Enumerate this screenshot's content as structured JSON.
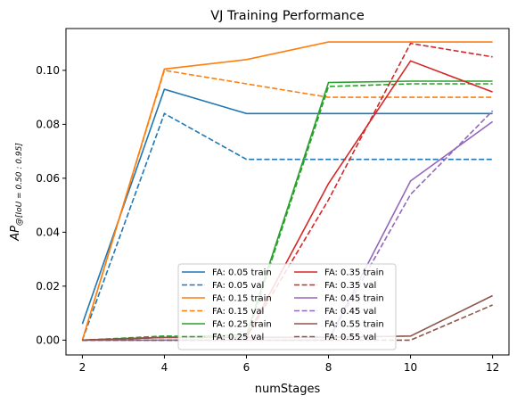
{
  "chart_data": {
    "type": "line",
    "title": "VJ Training Performance",
    "xlabel": "numStages",
    "ylabel": "AP@[IoU = 0.50 : 0.95]",
    "ylabel_parts": {
      "main": "AP",
      "sub": "@[IoU = 0.50 : 0.95]"
    },
    "x": [
      2,
      4,
      6,
      8,
      10,
      12
    ],
    "xlim": [
      1.6,
      12.4
    ],
    "ylim": [
      -0.0055,
      0.1155
    ],
    "xticks": [
      2,
      4,
      6,
      8,
      10,
      12
    ],
    "yticks": [
      0.0,
      0.02,
      0.04,
      0.06,
      0.08,
      0.1
    ],
    "ytick_labels": [
      "0.00",
      "0.02",
      "0.04",
      "0.06",
      "0.08",
      "0.10"
    ],
    "grid": false,
    "legend_position": "lower-center",
    "legend_columns": 2,
    "series": [
      {
        "name": "FA: 0.05 train",
        "color": "#1f77b4",
        "style": "solid",
        "values": [
          0.006,
          0.093,
          0.084,
          0.084,
          0.084,
          0.084
        ]
      },
      {
        "name": "FA: 0.05 val",
        "color": "#1f77b4",
        "style": "dashed",
        "values": [
          0.0,
          0.084,
          0.067,
          0.067,
          0.067,
          0.067
        ]
      },
      {
        "name": "FA: 0.15 train",
        "color": "#ff7f0e",
        "style": "solid",
        "values": [
          0.0,
          0.1005,
          0.104,
          0.1105,
          0.1105,
          0.1105
        ]
      },
      {
        "name": "FA: 0.15 val",
        "color": "#ff7f0e",
        "style": "dashed",
        "values": [
          0.0,
          0.1,
          0.095,
          0.09,
          0.09,
          0.09
        ]
      },
      {
        "name": "FA: 0.25 train",
        "color": "#2ca02c",
        "style": "solid",
        "values": [
          0.0,
          0.001,
          0.002,
          0.0955,
          0.096,
          0.096
        ]
      },
      {
        "name": "FA: 0.25 val",
        "color": "#2ca02c",
        "style": "dashed",
        "values": [
          0.0,
          0.0015,
          0.001,
          0.094,
          0.095,
          0.095
        ]
      },
      {
        "name": "FA: 0.35 train",
        "color": "#d62728",
        "style": "solid",
        "values": [
          0.0,
          0.001,
          0.001,
          0.058,
          0.1035,
          0.092
        ]
      },
      {
        "name": "FA: 0.35 val",
        "color": "#d62728",
        "style": "dashed",
        "values": [
          0.0,
          0.001,
          0.001,
          0.052,
          0.11,
          0.105
        ]
      },
      {
        "name": "FA: 0.45 train",
        "color": "#9467bd",
        "style": "solid",
        "values": [
          0.0,
          0.0,
          0.0,
          0.0,
          0.059,
          0.081
        ]
      },
      {
        "name": "FA: 0.45 val",
        "color": "#9467bd",
        "style": "dashed",
        "values": [
          0.0,
          0.0,
          0.0,
          0.0,
          0.054,
          0.085
        ]
      },
      {
        "name": "FA: 0.55 train",
        "color": "#8c564b",
        "style": "solid",
        "values": [
          0.0,
          0.001,
          0.001,
          0.001,
          0.0015,
          0.0165
        ]
      },
      {
        "name": "FA: 0.55 val",
        "color": "#8c564b",
        "style": "dashed",
        "values": [
          0.0,
          0.0,
          0.0,
          0.0,
          0.0,
          0.013
        ]
      }
    ]
  }
}
